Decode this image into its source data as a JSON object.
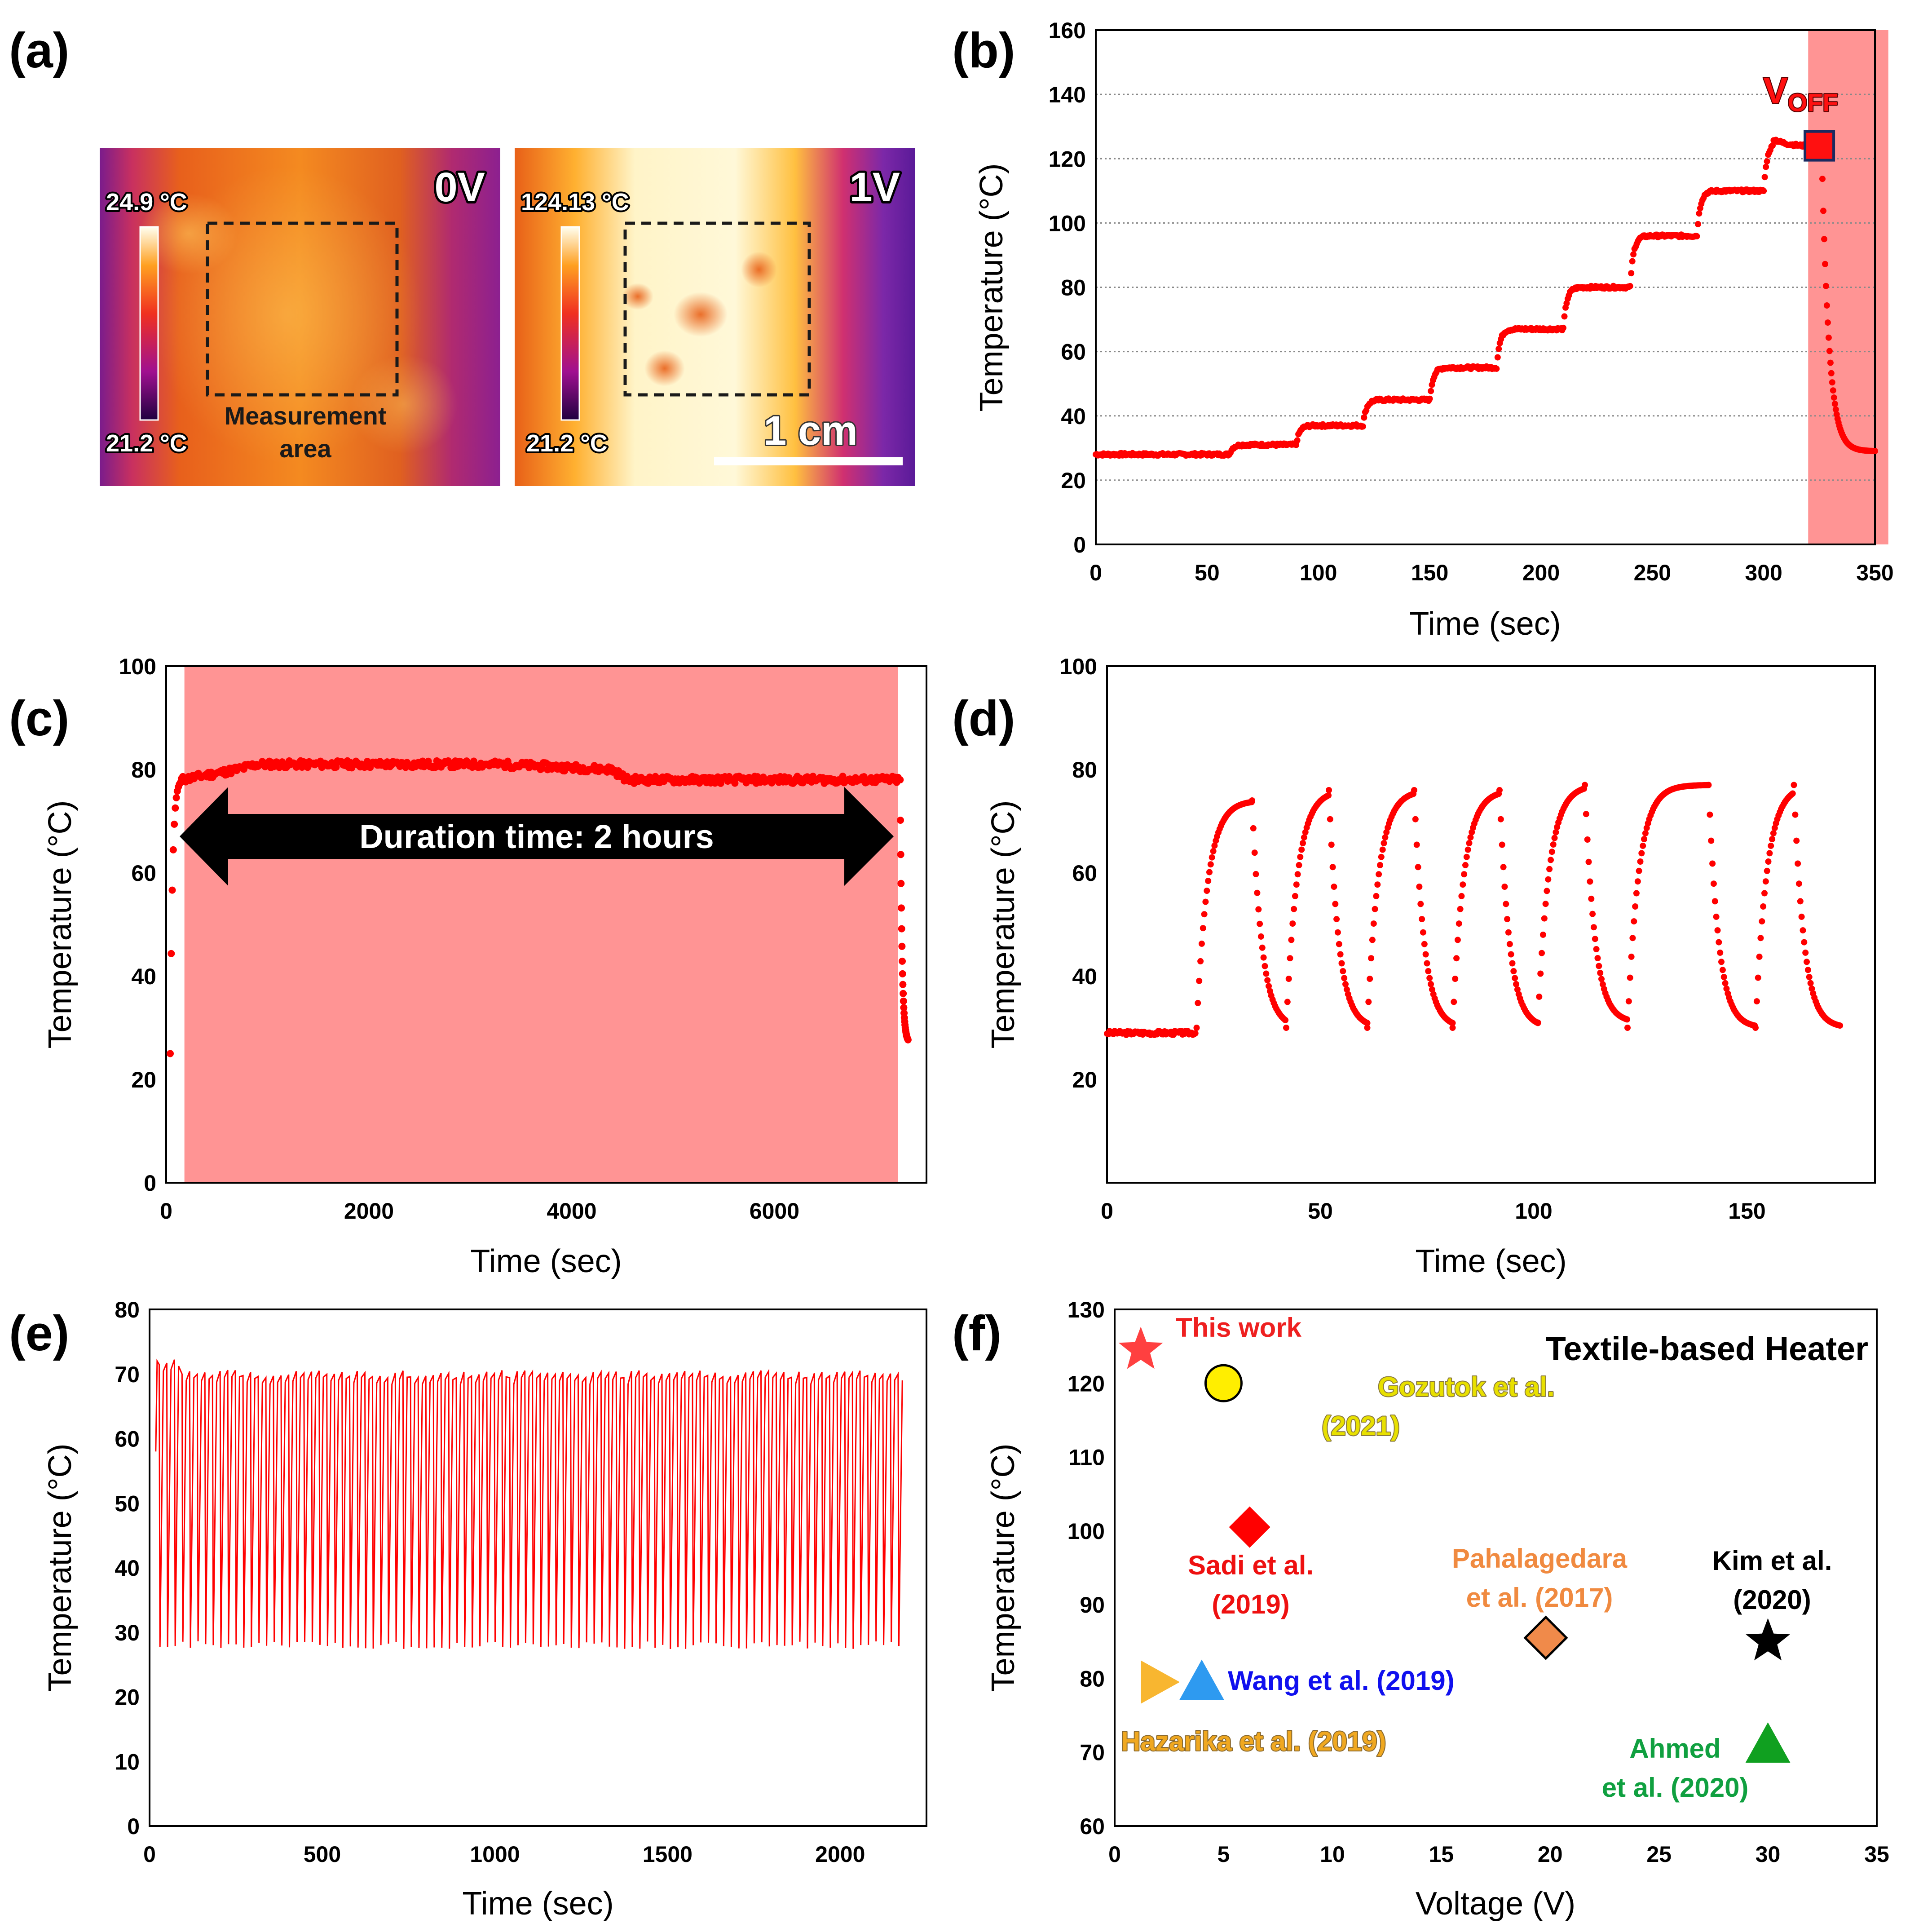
{
  "panel_labels": {
    "a": "(a)",
    "b": "(b)",
    "c": "(c)",
    "d": "(d)",
    "e": "(e)",
    "f": "(f)"
  },
  "panel_a": {
    "left_image": {
      "voltage": "0V",
      "scale_max": "24.9 °C",
      "scale_min": "21.2 °C",
      "box_label_1": "Measurement",
      "box_label_2": "area"
    },
    "right_image": {
      "voltage": "1V",
      "scale_max": "124.13 °C",
      "scale_min": "21.2 °C",
      "scale_bar": "1 cm"
    },
    "colors": {
      "cold": "#5a1090",
      "mid": "#e04020",
      "hot": "#fff4c8"
    }
  },
  "chart_data": [
    {
      "panel": "b",
      "type": "scatter",
      "title": "",
      "xlabel": "Time (sec)",
      "ylabel": "Temperature (°C)",
      "xlim": [
        0,
        350
      ],
      "ylim": [
        0,
        160
      ],
      "xticks": [
        0,
        50,
        100,
        150,
        200,
        250,
        300,
        350
      ],
      "yticks": [
        0,
        20,
        40,
        60,
        80,
        100,
        120,
        140,
        160
      ],
      "grid": "horizontal dotted",
      "shaded_region": [
        320,
        356
      ],
      "color": "#ff0000",
      "steps": [
        {
          "t_start": 0,
          "t_end": 60,
          "temp": 28
        },
        {
          "t_start": 60,
          "t_end": 90,
          "temp": 31
        },
        {
          "t_start": 90,
          "t_end": 120,
          "temp": 37
        },
        {
          "t_start": 120,
          "t_end": 150,
          "temp": 45
        },
        {
          "t_start": 150,
          "t_end": 180,
          "temp": 55
        },
        {
          "t_start": 180,
          "t_end": 210,
          "temp": 67
        },
        {
          "t_start": 210,
          "t_end": 240,
          "temp": 80
        },
        {
          "t_start": 240,
          "t_end": 270,
          "temp": 96
        },
        {
          "t_start": 270,
          "t_end": 300,
          "temp": 110
        },
        {
          "t_start": 300,
          "t_end": 326,
          "temp": 125
        }
      ],
      "cooling": {
        "t_start": 326,
        "t_end": 350,
        "temp_end": 29
      },
      "annotation": {
        "label": "V",
        "subscript": "OFF",
        "x": 325,
        "y": 124
      }
    },
    {
      "panel": "c",
      "type": "scatter",
      "xlabel": "Time (sec)",
      "ylabel": "Temperature (°C)",
      "xlim": [
        0,
        7500
      ],
      "ylim": [
        0,
        100
      ],
      "xticks": [
        0,
        2000,
        4000,
        6000
      ],
      "yticks": [
        0,
        20,
        40,
        60,
        80,
        100
      ],
      "shaded_region": [
        180,
        7220
      ],
      "color": "#ff0000",
      "plateau": [
        {
          "t": 150,
          "temp": 78
        },
        {
          "t": 700,
          "temp": 80
        },
        {
          "t": 900,
          "temp": 81
        },
        {
          "t": 3300,
          "temp": 81
        },
        {
          "t": 4400,
          "temp": 80
        },
        {
          "t": 4550,
          "temp": 78
        },
        {
          "t": 7220,
          "temp": 78
        }
      ],
      "start_temp": 25,
      "end_temp": 27,
      "annotation": "Duration time: 2 hours"
    },
    {
      "panel": "d",
      "type": "scatter",
      "xlabel": "Time (sec)",
      "ylabel": "Temperature (°C)",
      "xlim": [
        0,
        180
      ],
      "ylim": [
        0,
        100
      ],
      "xticks": [
        0,
        50,
        100,
        150
      ],
      "yticks": [
        20,
        40,
        60,
        80,
        100
      ],
      "color": "#ff0000",
      "baseline": {
        "t_start": 0,
        "t_end": 21,
        "temp": 29
      },
      "cycles": [
        {
          "t_on": 21,
          "t_off": 34,
          "t_end": 42,
          "peak": 74,
          "low": 30
        },
        {
          "t_on": 42,
          "t_off": 52,
          "t_end": 61,
          "peak": 76,
          "low": 30
        },
        {
          "t_on": 61,
          "t_off": 72,
          "t_end": 81,
          "peak": 76,
          "low": 30
        },
        {
          "t_on": 81,
          "t_off": 92,
          "t_end": 101,
          "peak": 76,
          "low": 30
        },
        {
          "t_on": 101,
          "t_off": 112,
          "t_end": 122,
          "peak": 77,
          "low": 31
        },
        {
          "t_on": 122,
          "t_off": 141,
          "t_end": 152,
          "peak": 77,
          "low": 30
        },
        {
          "t_on": 152,
          "t_off": 161,
          "t_end": 172,
          "peak": 77,
          "low": 30
        }
      ]
    },
    {
      "panel": "e",
      "type": "line",
      "xlabel": "Time (sec)",
      "ylabel": "Temperature (°C)",
      "xlim": [
        0,
        2250
      ],
      "ylim": [
        0,
        80
      ],
      "xticks": [
        0,
        500,
        1000,
        1500,
        2000
      ],
      "yticks": [
        0,
        10,
        20,
        30,
        40,
        50,
        60,
        70,
        80
      ],
      "color": "#ff0000",
      "cycles": 98,
      "t_start": 18,
      "t_end": 2180,
      "peak": 70,
      "low": 28
    },
    {
      "panel": "f",
      "type": "scatter",
      "title": "Textile-based Heater",
      "xlabel": "Voltage (V)",
      "ylabel": "Temperature (°C)",
      "xlim": [
        0,
        35
      ],
      "ylim": [
        60,
        130
      ],
      "xticks": [
        0,
        5,
        10,
        15,
        20,
        25,
        30,
        35
      ],
      "yticks": [
        60,
        70,
        80,
        90,
        100,
        110,
        120,
        130
      ],
      "points": [
        {
          "label": "This work",
          "x": 1.2,
          "y": 124.5,
          "marker": "star",
          "color": "#ff4040",
          "label_color": "#ee2020"
        },
        {
          "label": "Gozutok et al. (2021)",
          "label_1": "Gozutok et al.",
          "label_2": "(2021)",
          "x": 5,
          "y": 120,
          "marker": "circle",
          "color": "#ffee00",
          "label_color": "#e8e000"
        },
        {
          "label": "Sadi et al. (2019)",
          "label_1": "Sadi et al.",
          "label_2": "(2019)",
          "x": 6.2,
          "y": 100.5,
          "marker": "diamond",
          "color": "#ff0000",
          "label_color": "#ee1010"
        },
        {
          "label": "Pahalagedara et al. (2017)",
          "label_1": "Pahalagedara",
          "label_2": "et al. (2017)",
          "x": 19.8,
          "y": 85.5,
          "marker": "diamond",
          "color": "#f08a4a",
          "label_color": "#f08a40"
        },
        {
          "label": "Kim et al. (2020)",
          "label_1": "Kim et al.",
          "label_2": "(2020)",
          "x": 30,
          "y": 85,
          "marker": "star",
          "color": "#000000",
          "label_color": "#000000"
        },
        {
          "label": "Wang et al. (2019)",
          "x": 4,
          "y": 79.5,
          "marker": "triangle-up",
          "color": "#2e9af0",
          "label_color": "#1010ee"
        },
        {
          "label": "Hazarika et al. (2019)",
          "x": 2,
          "y": 79.5,
          "marker": "triangle-right",
          "color": "#f8b630",
          "label_color": "#f0a820"
        },
        {
          "label": "Ahmed et al. (2020)",
          "label_1": "Ahmed",
          "label_2": "et al. (2020)",
          "x": 30,
          "y": 71,
          "marker": "triangle-up",
          "color": "#10a020",
          "label_color": "#10a040"
        }
      ]
    }
  ]
}
